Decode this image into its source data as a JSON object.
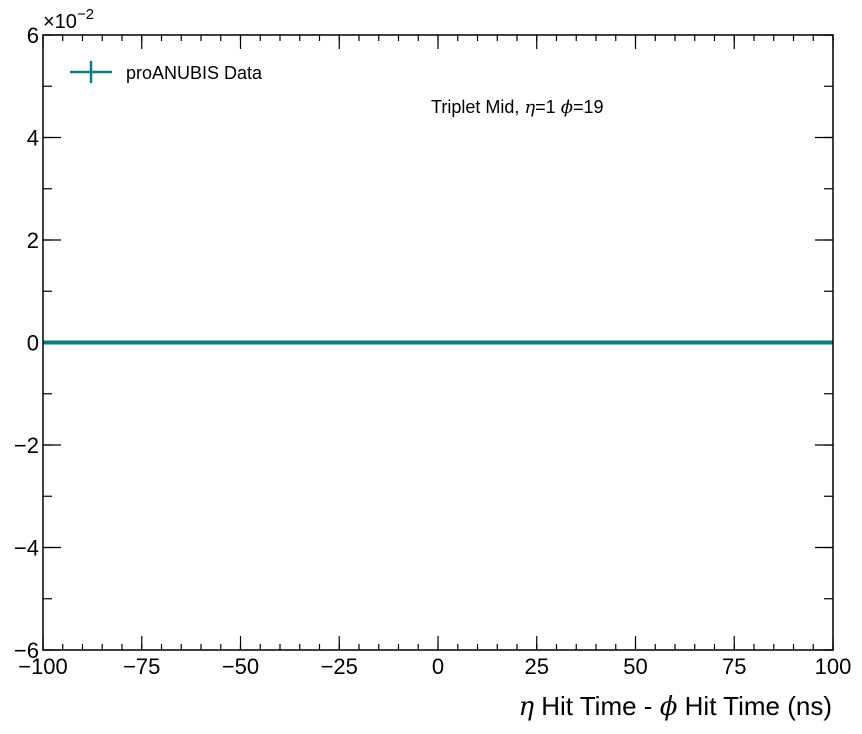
{
  "chart_data": {
    "type": "line",
    "xlabel": {
      "eta": "η",
      "mid": " Hit Time - ",
      "phi": "ϕ",
      "rest": " Hit Time (ns)"
    },
    "ylabel": "",
    "xlim": [
      -100,
      100
    ],
    "ylim": [
      -0.06,
      0.06
    ],
    "x_ticks": [
      -100,
      -75,
      -50,
      -25,
      0,
      25,
      50,
      75,
      100
    ],
    "x_tick_labels": [
      "−100",
      "−75",
      "−50",
      "−25",
      "0",
      "25",
      "50",
      "75",
      "100"
    ],
    "x_minor_step": 5,
    "y_ticks": [
      -0.06,
      -0.04,
      -0.02,
      0,
      0.02,
      0.04,
      0.06
    ],
    "y_tick_labels": [
      "−6",
      "−4",
      "−2",
      "0",
      "2",
      "4",
      "6"
    ],
    "y_minor_step": 0.01,
    "y_offset_text": {
      "base": "×10",
      "exponent": "−2"
    },
    "grid": false,
    "legend_position": "top-left",
    "series": [
      {
        "name": "proANUBIS Data",
        "color": "#008080",
        "x": [
          -100,
          100
        ],
        "y": [
          0,
          0
        ]
      }
    ],
    "annotation": {
      "prefix": "Triplet Mid, ",
      "eta": "η",
      "eta_value": "=1 ",
      "phi": "ϕ",
      "phi_value": "=19"
    }
  }
}
